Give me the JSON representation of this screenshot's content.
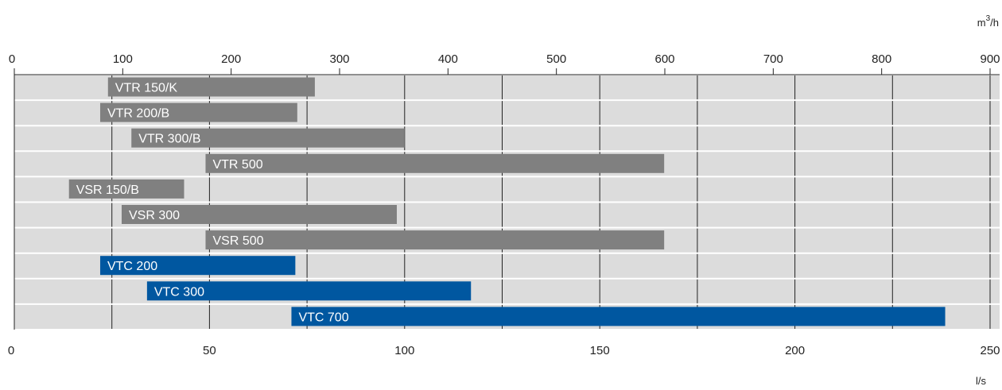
{
  "chart_data": {
    "type": "bar",
    "orientation": "horizontal",
    "bars": [
      {
        "label": "VTR 150/K",
        "start_ls": 24,
        "end_ls": 77,
        "color": "#808080"
      },
      {
        "label": "VTR 200/B",
        "start_ls": 22,
        "end_ls": 72.5,
        "color": "#808080"
      },
      {
        "label": "VTR 300/B",
        "start_ls": 30,
        "end_ls": 100,
        "color": "#808080"
      },
      {
        "label": "VTR 500",
        "start_ls": 49,
        "end_ls": 166.5,
        "color": "#808080"
      },
      {
        "label": "VSR 150/B",
        "start_ls": 14,
        "end_ls": 43.5,
        "color": "#808080"
      },
      {
        "label": "VSR 300",
        "start_ls": 27.5,
        "end_ls": 98,
        "color": "#808080"
      },
      {
        "label": "VSR 500",
        "start_ls": 49,
        "end_ls": 166.5,
        "color": "#808080"
      },
      {
        "label": "VTC 200",
        "start_ls": 22,
        "end_ls": 72,
        "color": "#0057a0"
      },
      {
        "label": "VTC 300",
        "start_ls": 34,
        "end_ls": 117,
        "color": "#0057a0"
      },
      {
        "label": "VTC 700",
        "start_ls": 71,
        "end_ls": 238.5,
        "color": "#0057a0"
      }
    ],
    "top_axis": {
      "unit_base": "m",
      "unit_sup": "3",
      "unit_tail": "/h",
      "ticks": [
        "0",
        "100",
        "200",
        "300",
        "400",
        "500",
        "600",
        "700",
        "800",
        "900"
      ],
      "tick_values": [
        0,
        100,
        200,
        300,
        400,
        500,
        600,
        700,
        800,
        900
      ]
    },
    "bottom_axis": {
      "unit": "l/s",
      "ticks": [
        "0",
        "50",
        "100",
        "150",
        "200",
        "250"
      ],
      "tick_values": [
        0,
        50,
        100,
        150,
        200,
        250
      ],
      "range": [
        0,
        250
      ]
    },
    "m3h_per_ls": 3.6,
    "plot_background": "#dcdcdc",
    "gridlines": true
  }
}
